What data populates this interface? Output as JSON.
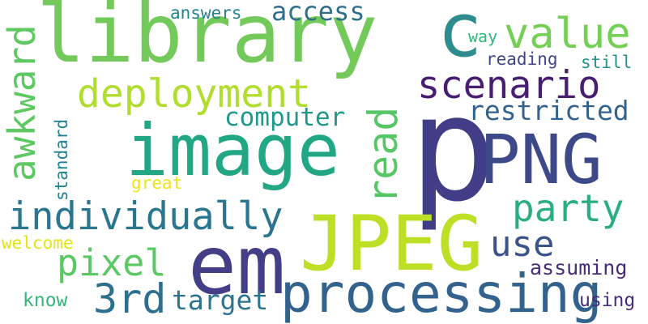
{
  "words": [
    {
      "text": "library",
      "color": "#73c959"
    },
    {
      "text": "p",
      "color": "#423d87"
    },
    {
      "text": "image",
      "color": "#22a784"
    },
    {
      "text": "em",
      "color": "#433e85"
    },
    {
      "text": "JPEG",
      "color": "#bddf26"
    },
    {
      "text": "processing",
      "color": "#33638d"
    },
    {
      "text": "PNG",
      "color": "#3e4989"
    },
    {
      "text": "c",
      "color": "#2c8c8e"
    },
    {
      "text": "value",
      "color": "#73d055"
    },
    {
      "text": "scenario",
      "color": "#481e70"
    },
    {
      "text": "deployment",
      "color": "#b1dd2f"
    },
    {
      "text": "individually",
      "color": "#2a768e"
    },
    {
      "text": "pixel",
      "color": "#5cc863"
    },
    {
      "text": "3rd",
      "color": "#2d708e"
    },
    {
      "text": "party",
      "color": "#29af7f"
    },
    {
      "text": "use",
      "color": "#3b528b"
    },
    {
      "text": "read",
      "color": "#56c667"
    },
    {
      "text": "awkward",
      "color": "#5ec962"
    },
    {
      "text": "access",
      "color": "#2e6f8e"
    },
    {
      "text": "computer",
      "color": "#1f998a"
    },
    {
      "text": "restricted",
      "color": "#33638d"
    },
    {
      "text": "target",
      "color": "#2c738e"
    },
    {
      "text": "assuming",
      "color": "#472c7a"
    },
    {
      "text": "answers",
      "color": "#26828e"
    },
    {
      "text": "way",
      "color": "#32b67a"
    },
    {
      "text": "reading",
      "color": "#404688"
    },
    {
      "text": "still",
      "color": "#21918c"
    },
    {
      "text": "standard",
      "color": "#26818e"
    },
    {
      "text": "great",
      "color": "#ece51b"
    },
    {
      "text": "welcome",
      "color": "#e2e418"
    },
    {
      "text": "know",
      "color": "#35b779"
    },
    {
      "text": "using",
      "color": "#472d7b"
    }
  ]
}
